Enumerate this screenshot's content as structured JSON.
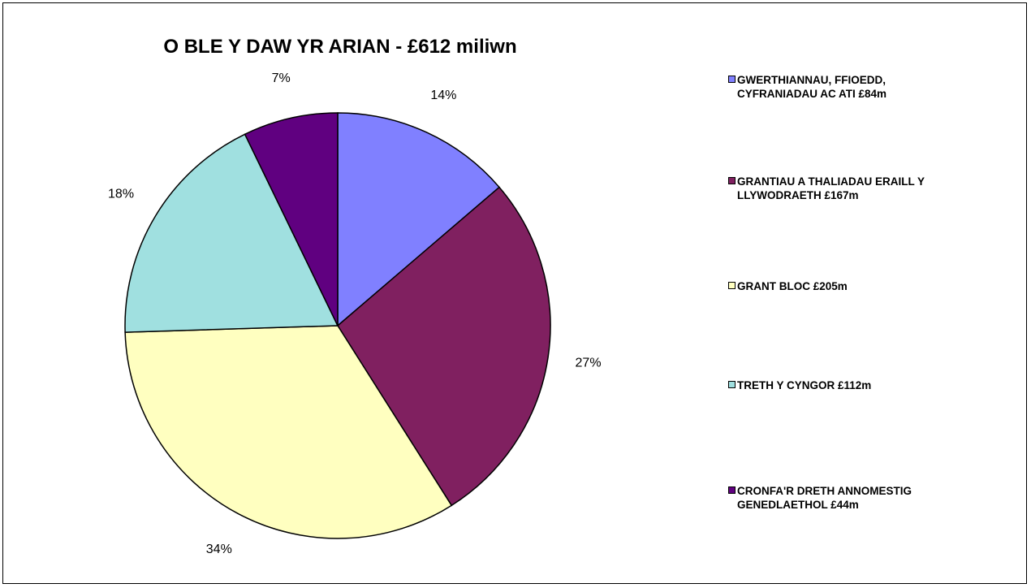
{
  "chart_data": {
    "type": "pie",
    "title": "O BLE Y DAW YR ARIAN - £612 miliwn",
    "slices": [
      {
        "label": "GWERTHIANNAU, FFIOEDD, CYFRANIADAU AC ATI £84m",
        "value": 84,
        "percent_label": "14%",
        "color": "#8080ff"
      },
      {
        "label": "GRANTIAU A THALIADAU ERAILL Y LLYWODRAETH £167m",
        "value": 167,
        "percent_label": "27%",
        "color": "#802060"
      },
      {
        "label": "GRANT BLOC £205m",
        "value": 205,
        "percent_label": "34%",
        "color": "#ffffc0"
      },
      {
        "label": "TRETH Y CYNGOR £112m",
        "value": 112,
        "percent_label": "18%",
        "color": "#a0e0e0"
      },
      {
        "label": "CRONFA'R DRETH ANNOMESTIG GENEDLAETHOL £44m",
        "value": 44,
        "percent_label": "7%",
        "color": "#600080"
      }
    ],
    "legend_position": "right"
  }
}
